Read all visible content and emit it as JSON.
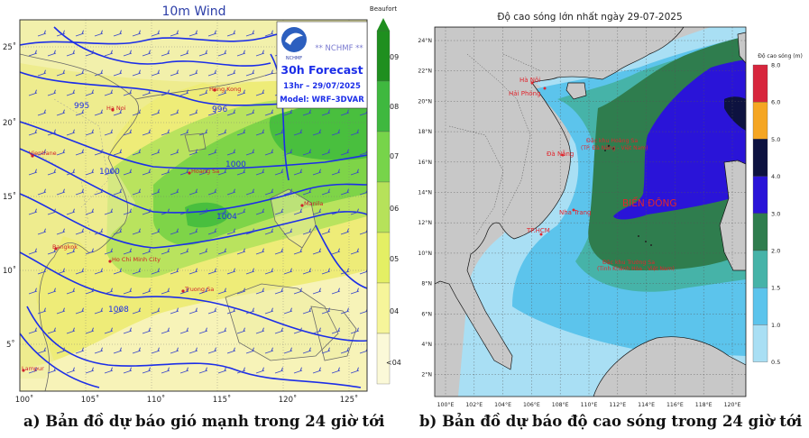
{
  "wind_map": {
    "title": "10m Wind",
    "agency_banner": "** NCHMF **",
    "agency_logo_text": "NCHMF",
    "forecast_title": "30h Forecast",
    "forecast_time": "13hr – 29/07/2025",
    "model": "Model: WRF–3DVAR",
    "colorbar_title": "Beaufort",
    "colorbar_labels": [
      "09",
      "08",
      "07",
      "06",
      "05",
      "04",
      "<04"
    ],
    "colorbar_colors": [
      "#1f8f1f",
      "#3fb83f",
      "#77d44a",
      "#b6e25a",
      "#e4ef64",
      "#f6f59a",
      "#fbf9d8"
    ],
    "lon_ticks": [
      "100˚",
      "105˚",
      "110˚",
      "115˚",
      "120˚",
      "125˚"
    ],
    "lat_ticks": [
      "25˚",
      "20˚",
      "15˚",
      "10˚",
      "5˚"
    ],
    "isobar_labels": [
      "995",
      "1000",
      "1004",
      "1008",
      "1000",
      "996"
    ],
    "places": [
      "Hong Kong",
      "Ha Noi",
      "Vientiane",
      "Hoang Sa",
      "Manila",
      "Bangkok",
      "Ho Chi Minh City",
      "Truong Sa",
      "Lampur"
    ]
  },
  "wave_map": {
    "title": "Độ cao sóng lớn nhất ngày 29-07-2025",
    "colorbar_title": "Độ cao sóng (m)",
    "colorbar_labels": [
      "8.0",
      "6.0",
      "5.0",
      "4.0",
      "3.0",
      "2.0",
      "1.5",
      "1.0",
      "0.5"
    ],
    "colorbar_colors": [
      "#d7263d",
      "#f5a623",
      "#0d1240",
      "#2a14d8",
      "#2f7d4e",
      "#46b3a8",
      "#5cc4ec",
      "#a9dff4"
    ],
    "lon_ticks": [
      "100°E",
      "102°E",
      "104°E",
      "106°E",
      "108°E",
      "110°E",
      "112°E",
      "114°E",
      "116°E",
      "118°E",
      "120°E"
    ],
    "lat_ticks": [
      "24°N",
      "22°N",
      "20°N",
      "18°N",
      "16°N",
      "14°N",
      "12°N",
      "10°N",
      "8°N",
      "6°N",
      "4°N",
      "2°N"
    ],
    "labels": {
      "ha_noi": "Hà Nội",
      "hai_phong": "Hải Phòng",
      "da_nang": "Đà Nẵng",
      "nha_trang": "Nha Trang",
      "hcm": "TP.HCM",
      "hoang_sa": "Đặc khu Hoàng Sa",
      "hoang_sa_sub": "(TP. Đà Nẵng - Việt Nam)",
      "bien_dong": "BIỂN ĐÔNG",
      "truong_sa": "Đặc khu Trường Sa",
      "truong_sa_sub": "(Tỉnh Khánh Hòa - Việt Nam)"
    }
  },
  "captions": {
    "a": "a) Bản đồ dự báo gió mạnh trong 24 giờ tới",
    "b": "b) Bản đồ dự báo độ cao sóng trong 24 giờ tới"
  }
}
